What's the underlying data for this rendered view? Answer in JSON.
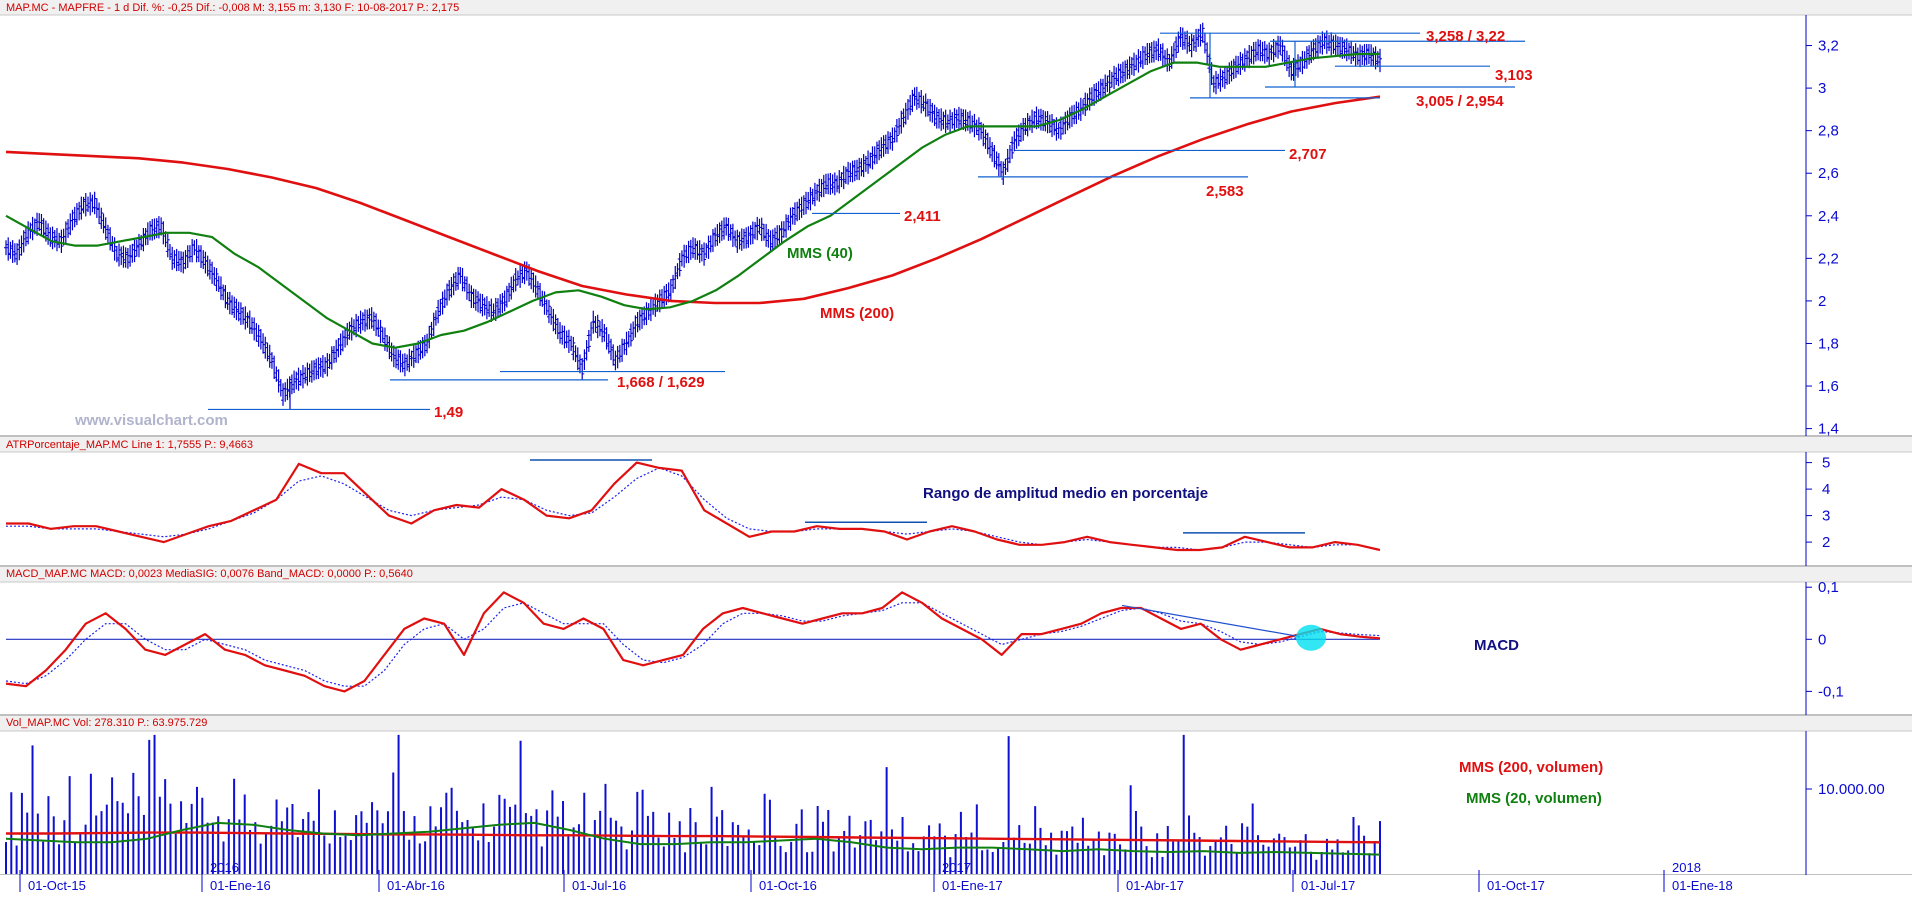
{
  "header": {
    "price": "MAP.MC - MAPFRE -  1 d  Dif. %: -0,25  Dif.: -0,008  M: 3,155  m: 3,130  F: 10-08-2017  P.: 2,175",
    "atr": "ATRPorcentaje_MAP.MC  Line 1: 1,7555  P.: 9,4663",
    "macd": "MACD_MAP.MC  MACD: 0,0023  MediaSIG: 0,0076  Band_MACD: 0,0000  P.: 0,5640",
    "vol": "Vol_MAP.MC  Vol: 278.310  P.: 63.975.729"
  },
  "watermark": "www.visualchart.com",
  "colors": {
    "price": "#0000cc",
    "mms200": "#e01010",
    "mms40": "#108010",
    "support": "#1060d0",
    "macd_signal": "#2020ee",
    "highlight": "#00e0f0"
  },
  "chart_data": [
    {
      "type": "line",
      "panel": "price",
      "x_dates": [
        "01-Oct-15",
        "01-Ene-16",
        "01-Abr-16",
        "01-Jul-16",
        "01-Oct-16",
        "01-Ene-17",
        "01-Abr-17",
        "01-Jul-17",
        "01-Oct-17",
        "01-Ene-18"
      ],
      "year_labels": [
        "2016",
        "2017",
        "2018"
      ],
      "y_ticks": [
        "3,2",
        "3",
        "2,8",
        "2,6",
        "2,4",
        "2,2",
        "2",
        "1,8",
        "1,6",
        "1,4"
      ],
      "ylim": [
        1.4,
        3.32
      ],
      "price": [
        2.25,
        2.22,
        2.32,
        2.37,
        2.3,
        2.28,
        2.38,
        2.45,
        2.46,
        2.34,
        2.22,
        2.2,
        2.26,
        2.33,
        2.35,
        2.2,
        2.18,
        2.25,
        2.18,
        2.1,
        2.0,
        1.95,
        1.9,
        1.82,
        1.72,
        1.56,
        1.62,
        1.65,
        1.68,
        1.7,
        1.78,
        1.86,
        1.9,
        1.92,
        1.84,
        1.74,
        1.7,
        1.75,
        1.8,
        1.95,
        2.05,
        2.12,
        2.02,
        1.98,
        1.95,
        2.0,
        2.1,
        2.14,
        2.05,
        1.95,
        1.85,
        1.8,
        1.68,
        1.9,
        1.85,
        1.72,
        1.8,
        1.9,
        1.95,
        2.0,
        2.05,
        2.2,
        2.25,
        2.22,
        2.3,
        2.35,
        2.28,
        2.3,
        2.35,
        2.28,
        2.32,
        2.4,
        2.45,
        2.5,
        2.55,
        2.55,
        2.6,
        2.62,
        2.66,
        2.72,
        2.76,
        2.86,
        2.96,
        2.92,
        2.86,
        2.84,
        2.86,
        2.84,
        2.8,
        2.7,
        2.6,
        2.75,
        2.82,
        2.86,
        2.84,
        2.8,
        2.86,
        2.9,
        2.96,
        3.0,
        3.05,
        3.08,
        3.12,
        3.16,
        3.18,
        3.12,
        3.24,
        3.2,
        3.26,
        3.02,
        3.05,
        3.1,
        3.14,
        3.18,
        3.16,
        3.2,
        3.08,
        3.12,
        3.18,
        3.22,
        3.2,
        3.18,
        3.15,
        3.16,
        3.13
      ],
      "price_low": 1.49,
      "mms40": [
        2.4,
        2.34,
        2.28,
        2.26,
        2.26,
        2.28,
        2.3,
        2.32,
        2.32,
        2.3,
        2.22,
        2.16,
        2.08,
        2.0,
        1.92,
        1.86,
        1.8,
        1.78,
        1.8,
        1.84,
        1.86,
        1.9,
        1.95,
        2.0,
        2.04,
        2.05,
        2.02,
        1.98,
        1.96,
        1.97,
        2.0,
        2.05,
        2.12,
        2.2,
        2.28,
        2.35,
        2.4,
        2.48,
        2.56,
        2.64,
        2.72,
        2.78,
        2.82,
        2.82,
        2.82,
        2.82,
        2.85,
        2.9,
        2.96,
        3.02,
        3.08,
        3.12,
        3.12,
        3.1,
        3.1,
        3.1,
        3.12,
        3.14,
        3.15,
        3.16,
        3.16
      ],
      "mms200": [
        2.7,
        2.69,
        2.68,
        2.67,
        2.65,
        2.62,
        2.58,
        2.53,
        2.46,
        2.38,
        2.3,
        2.22,
        2.14,
        2.07,
        2.03,
        2.0,
        1.99,
        1.99,
        2.01,
        2.06,
        2.12,
        2.2,
        2.29,
        2.39,
        2.49,
        2.59,
        2.68,
        2.76,
        2.83,
        2.89,
        2.93,
        2.96
      ],
      "levels": [
        {
          "label": "3,258 / 3,22",
          "values": [
            3.258,
            3.22
          ]
        },
        {
          "label": "3,103",
          "values": [
            3.103
          ]
        },
        {
          "label": "3,005 / 2,954",
          "values": [
            3.005,
            2.954
          ]
        },
        {
          "label": "2,707",
          "values": [
            2.707
          ]
        },
        {
          "label": "2,583",
          "values": [
            2.583
          ]
        },
        {
          "label": "2,411",
          "values": [
            2.411
          ]
        },
        {
          "label": "1,668 / 1,629",
          "values": [
            1.668,
            1.629
          ]
        },
        {
          "label": "1,49",
          "values": [
            1.49
          ]
        }
      ],
      "series_labels": {
        "mms40": "MMS (40)",
        "mms200": "MMS (200)"
      }
    },
    {
      "type": "line",
      "panel": "atr",
      "title": "Rango de amplitud medio en porcentaje",
      "y_ticks": [
        "5",
        "4",
        "3",
        "2"
      ],
      "ylim": [
        1.4,
        5.4
      ],
      "line": [
        2.7,
        2.7,
        2.5,
        2.6,
        2.6,
        2.4,
        2.2,
        2.0,
        2.3,
        2.6,
        2.8,
        3.2,
        3.6,
        4.95,
        4.6,
        4.6,
        3.8,
        3.0,
        2.7,
        3.2,
        3.4,
        3.3,
        4.0,
        3.6,
        3.0,
        2.9,
        3.2,
        4.2,
        5.0,
        4.8,
        4.7,
        3.2,
        2.7,
        2.2,
        2.4,
        2.4,
        2.6,
        2.5,
        2.5,
        2.4,
        2.1,
        2.4,
        2.6,
        2.4,
        2.1,
        1.9,
        1.9,
        2.0,
        2.2,
        2.0,
        1.9,
        1.8,
        1.7,
        1.7,
        1.8,
        2.2,
        2.0,
        1.8,
        1.8,
        2.0,
        1.9,
        1.7
      ],
      "signal": [
        2.6,
        2.6,
        2.5,
        2.5,
        2.5,
        2.4,
        2.3,
        2.2,
        2.3,
        2.5,
        2.8,
        3.1,
        3.6,
        4.3,
        4.5,
        4.2,
        3.7,
        3.2,
        3.0,
        3.2,
        3.3,
        3.4,
        3.7,
        3.6,
        3.2,
        3.0,
        3.1,
        3.7,
        4.4,
        4.8,
        4.5,
        3.6,
        2.9,
        2.5,
        2.4,
        2.4,
        2.5,
        2.5,
        2.5,
        2.4,
        2.3,
        2.4,
        2.5,
        2.4,
        2.2,
        2.0,
        1.9,
        2.0,
        2.1,
        2.0,
        1.9,
        1.8,
        1.8,
        1.7,
        1.8,
        2.0,
        2.0,
        1.9,
        1.8,
        1.9,
        1.9,
        1.7
      ]
    },
    {
      "type": "line",
      "panel": "macd",
      "title": "MACD",
      "y_ticks": [
        "0,1",
        "0",
        "-0,1"
      ],
      "ylim": [
        -0.13,
        0.11
      ],
      "macd": [
        -0.085,
        -0.09,
        -0.06,
        -0.02,
        0.03,
        0.05,
        0.02,
        -0.02,
        -0.03,
        -0.01,
        0.01,
        -0.02,
        -0.03,
        -0.05,
        -0.06,
        -0.07,
        -0.09,
        -0.1,
        -0.08,
        -0.03,
        0.02,
        0.04,
        0.03,
        -0.03,
        0.05,
        0.09,
        0.07,
        0.03,
        0.02,
        0.04,
        0.02,
        -0.04,
        -0.05,
        -0.04,
        -0.03,
        0.02,
        0.05,
        0.06,
        0.05,
        0.04,
        0.03,
        0.04,
        0.05,
        0.05,
        0.06,
        0.09,
        0.07,
        0.04,
        0.02,
        0.0,
        -0.03,
        0.01,
        0.01,
        0.02,
        0.03,
        0.05,
        0.06,
        0.06,
        0.04,
        0.02,
        0.03,
        0.0,
        -0.02,
        -0.01,
        0.0,
        0.01,
        0.02,
        0.01,
        0.005,
        0.002
      ],
      "signal": [
        -0.08,
        -0.085,
        -0.07,
        -0.04,
        0.0,
        0.03,
        0.03,
        0.0,
        -0.02,
        -0.02,
        0.0,
        -0.01,
        -0.02,
        -0.04,
        -0.05,
        -0.06,
        -0.08,
        -0.09,
        -0.09,
        -0.06,
        -0.01,
        0.02,
        0.03,
        0.0,
        0.02,
        0.06,
        0.07,
        0.05,
        0.03,
        0.03,
        0.03,
        -0.01,
        -0.04,
        -0.045,
        -0.035,
        -0.01,
        0.03,
        0.05,
        0.05,
        0.045,
        0.035,
        0.035,
        0.045,
        0.05,
        0.055,
        0.07,
        0.07,
        0.05,
        0.03,
        0.01,
        -0.01,
        0.0,
        0.01,
        0.015,
        0.025,
        0.04,
        0.055,
        0.06,
        0.05,
        0.035,
        0.03,
        0.015,
        -0.005,
        -0.01,
        -0.005,
        0.005,
        0.015,
        0.012,
        0.009,
        0.007
      ]
    },
    {
      "type": "bar",
      "panel": "volume",
      "y_ticks": [
        "10.000.00"
      ],
      "series_labels": {
        "ma200": "MMS (200, volumen)",
        "ma20": "MMS (20, volumen)"
      },
      "volume_bars": [
        50,
        45,
        40,
        60,
        55,
        48,
        42,
        38,
        52,
        47,
        44,
        62,
        58,
        50,
        46,
        41,
        55,
        49,
        43,
        66,
        60,
        54,
        48,
        44,
        58,
        52,
        46,
        70,
        63,
        56,
        50,
        45,
        40,
        62,
        57,
        51,
        46,
        42,
        39,
        55,
        50,
        45,
        41,
        58,
        53,
        48,
        44,
        40,
        37,
        52,
        47,
        43,
        60,
        55,
        50,
        46,
        42,
        38,
        35,
        50,
        45,
        41,
        38,
        56,
        51,
        46,
        42,
        39,
        36,
        48,
        44,
        40,
        37,
        54,
        49,
        45,
        41,
        38,
        35,
        47,
        43,
        40,
        37,
        52,
        48,
        44,
        40,
        37,
        34,
        46,
        42,
        39,
        36,
        50,
        46,
        42,
        38,
        35,
        33,
        45,
        41,
        38,
        35,
        49,
        45,
        41,
        37,
        34,
        32,
        44,
        40,
        37,
        34,
        48,
        44,
        40,
        36,
        33,
        31,
        43,
        39,
        36,
        33,
        47,
        43,
        39,
        35,
        32,
        30,
        42,
        38,
        35,
        32,
        46,
        42,
        38,
        34,
        31,
        29,
        41,
        37,
        34,
        31,
        45,
        41,
        37,
        33,
        30,
        28,
        40,
        36,
        33,
        30,
        44,
        40,
        36,
        32,
        29,
        27,
        39,
        35,
        32,
        29,
        43,
        39,
        35,
        31,
        28,
        26,
        38,
        34,
        31,
        28,
        42,
        38,
        34,
        30,
        27,
        25,
        37,
        33,
        30,
        27,
        41,
        37,
        33,
        29,
        26,
        24,
        36,
        32,
        29,
        26,
        40,
        36,
        32,
        28,
        25,
        23,
        35,
        31,
        28,
        25,
        39,
        35,
        31,
        27,
        24,
        22,
        34,
        30,
        27,
        24,
        38,
        34,
        30,
        26,
        23,
        21,
        33,
        29,
        26,
        23,
        37,
        33,
        29,
        25,
        22,
        20,
        32,
        28,
        25,
        22,
        36,
        32,
        28,
        24,
        21,
        19,
        31,
        27,
        24,
        21,
        35,
        31,
        27,
        23,
        20,
        18,
        30,
        26,
        23,
        20,
        34,
        30,
        26,
        22,
        19,
        17
      ],
      "ma200": [
        0.46,
        0.46,
        0.465,
        0.47,
        0.47,
        0.465,
        0.46,
        0.455,
        0.45,
        0.45,
        0.445,
        0.44,
        0.44,
        0.435,
        0.43,
        0.43,
        0.425,
        0.42,
        0.415,
        0.41,
        0.405,
        0.4,
        0.395,
        0.39,
        0.385,
        0.38,
        0.375,
        0.37,
        0.365,
        0.36
      ],
      "ma20": [
        0.4,
        0.38,
        0.36,
        0.36,
        0.4,
        0.5,
        0.58,
        0.56,
        0.5,
        0.46,
        0.44,
        0.46,
        0.48,
        0.52,
        0.56,
        0.58,
        0.5,
        0.4,
        0.34,
        0.34,
        0.36,
        0.36,
        0.38,
        0.4,
        0.36,
        0.3,
        0.28,
        0.3,
        0.3,
        0.28,
        0.26,
        0.28,
        0.26,
        0.25,
        0.26,
        0.24,
        0.25,
        0.24,
        0.23,
        0.22
      ]
    }
  ]
}
